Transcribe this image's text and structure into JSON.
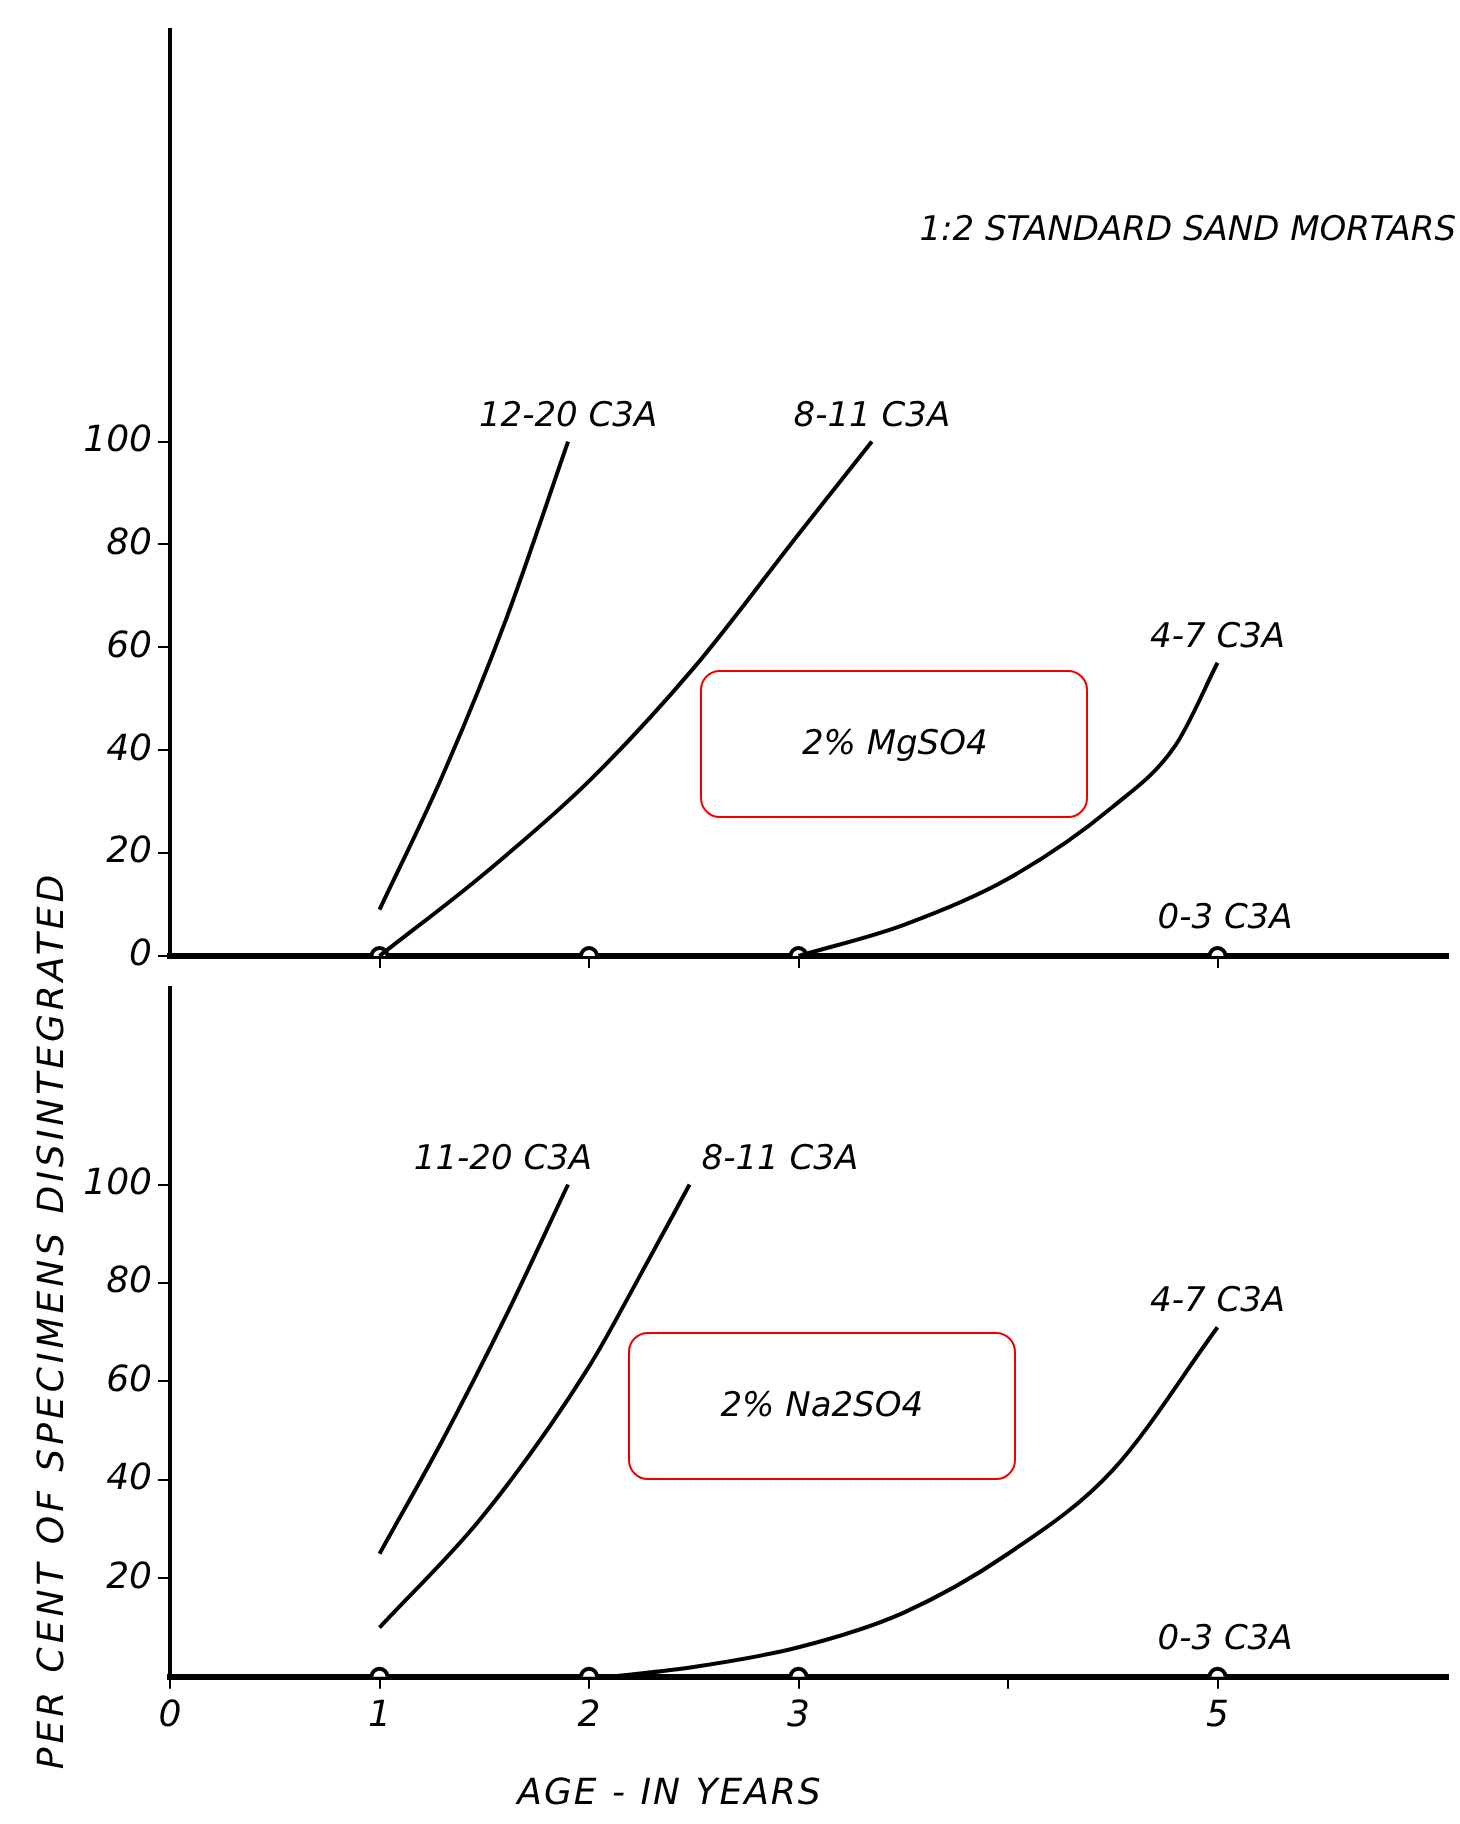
{
  "chart_data": [
    {
      "type": "line",
      "title": "1:2 STANDARD SAND MORTARS",
      "ylabel": "PER CENT OF SPECIMENS DISINTEGRATED",
      "annotations": [
        "2% MgSO4"
      ],
      "xlim": [
        0,
        6.1
      ],
      "xticks": [
        1,
        2,
        3,
        5
      ],
      "ylim": [
        0,
        180
      ],
      "yticks": [
        0,
        20,
        40,
        60,
        80,
        100
      ],
      "tick_labels": "y",
      "grid": false,
      "legend": false,
      "marker": "none",
      "series": [
        {
          "name": "12-20 C3A",
          "color": "#000000",
          "x": [
            1,
            1.3,
            1.6,
            1.9
          ],
          "values": [
            9,
            35,
            65,
            100
          ]
        },
        {
          "name": "8-11 C3A",
          "color": "#000000",
          "x": [
            1,
            1.5,
            2,
            2.5,
            3,
            3.35
          ],
          "values": [
            0,
            16,
            34,
            56,
            82,
            100
          ]
        },
        {
          "name": "4-7 C3A",
          "color": "#000000",
          "x": [
            3,
            3.5,
            4,
            4.5,
            4.8,
            5
          ],
          "values": [
            0,
            6,
            15,
            29,
            41,
            57
          ]
        },
        {
          "name": "0-3 C3A",
          "type": "scatter",
          "marker": "circle",
          "color": "#000000",
          "x": [
            1,
            2,
            3,
            5
          ],
          "values": [
            0,
            0,
            0,
            0
          ]
        }
      ]
    },
    {
      "type": "line",
      "xlabel": "AGE - IN YEARS",
      "annotations": [
        "2% Na2SO4"
      ],
      "xlim": [
        0,
        6.1
      ],
      "xticks": [
        0,
        1,
        2,
        3,
        {
          "value": 4,
          "label": null
        },
        5
      ],
      "ylim": [
        0,
        140
      ],
      "yticks": [
        20,
        40,
        60,
        80,
        100
      ],
      "grid": false,
      "legend": false,
      "marker": "none",
      "series": [
        {
          "name": "11-20 C3A",
          "color": "#000000",
          "x": [
            1,
            1.3,
            1.6,
            1.9
          ],
          "values": [
            25,
            48,
            73,
            100
          ]
        },
        {
          "name": "8-11 C3A",
          "color": "#000000",
          "x": [
            1,
            1.5,
            2,
            2.25,
            2.48
          ],
          "values": [
            10,
            33,
            63,
            82,
            100
          ]
        },
        {
          "name": "4-7 C3A",
          "color": "#000000",
          "x": [
            2.1,
            2.5,
            3,
            3.5,
            4,
            4.5,
            5
          ],
          "values": [
            0,
            2,
            6,
            13,
            25,
            42,
            71
          ]
        },
        {
          "name": "0-3 C3A",
          "type": "scatter",
          "marker": "circle",
          "color": "#000000",
          "x": [
            1,
            2,
            3,
            5
          ],
          "values": [
            0,
            0,
            0,
            0
          ]
        }
      ]
    }
  ]
}
